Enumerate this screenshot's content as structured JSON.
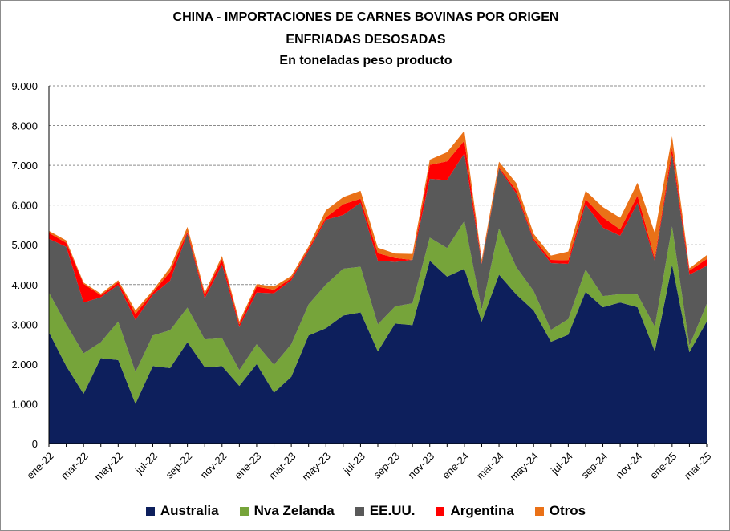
{
  "chart_data": {
    "type": "area",
    "stacked": true,
    "title": "CHINA - IMPORTACIONES DE CARNES BOVINAS POR ORIGEN",
    "subtitle": "ENFRIADAS DESOSADAS",
    "subtitle2": "En toneladas  peso producto",
    "ylim": [
      0,
      9000
    ],
    "yticks": [
      "0",
      "1.000",
      "2.000",
      "3.000",
      "4.000",
      "5.000",
      "6.000",
      "7.000",
      "8.000",
      "9.000"
    ],
    "grid": true,
    "legend_position": "bottom",
    "x": [
      "ene-22",
      "feb-22",
      "mar-22",
      "abr-22",
      "may-22",
      "jun-22",
      "jul-22",
      "ago-22",
      "sep-22",
      "oct-22",
      "nov-22",
      "dic-22",
      "ene-23",
      "feb-23",
      "mar-23",
      "abr-23",
      "may-23",
      "jun-23",
      "jul-23",
      "ago-23",
      "sep-23",
      "oct-23",
      "nov-23",
      "dic-23",
      "ene-24",
      "feb-24",
      "mar-24",
      "abr-24",
      "may-24",
      "jun-24",
      "jul-24",
      "ago-24",
      "sep-24",
      "oct-24",
      "nov-24",
      "dic-24",
      "ene-25",
      "feb-25",
      "mar-25"
    ],
    "xtick_labels": [
      "ene-22",
      "mar-22",
      "may-22",
      "jul-22",
      "sep-22",
      "nov-22",
      "ene-23",
      "mar-23",
      "may-23",
      "jul-23",
      "sep-23",
      "nov-23",
      "ene-24",
      "mar-24",
      "may-24",
      "jul-24",
      "sep-24",
      "nov-24",
      "ene-25",
      "mar-25"
    ],
    "series": [
      {
        "name": "Australia",
        "color": "#0d1f5c",
        "values": [
          2800,
          1950,
          1250,
          2150,
          2100,
          1000,
          1950,
          1900,
          2550,
          1920,
          1950,
          1450,
          2000,
          1280,
          1680,
          2720,
          2900,
          3220,
          3300,
          2320,
          3020,
          2980,
          4600,
          4200,
          4400,
          3070,
          4250,
          3750,
          3350,
          2560,
          2740,
          3820,
          3430,
          3550,
          3430,
          2320,
          4500,
          2300,
          3070
        ]
      },
      {
        "name": "Nva Zelanda",
        "color": "#76a43a",
        "values": [
          1000,
          1050,
          1020,
          400,
          970,
          800,
          770,
          950,
          870,
          700,
          700,
          400,
          500,
          700,
          820,
          780,
          1100,
          1180,
          1150,
          680,
          430,
          550,
          580,
          720,
          1200,
          300,
          1160,
          690,
          490,
          300,
          390,
          560,
          280,
          210,
          320,
          620,
          960,
          160,
          440
        ]
      },
      {
        "name": "EE.UU.",
        "color": "#595959",
        "values": [
          1350,
          1950,
          1280,
          1130,
          920,
          1310,
          1020,
          1250,
          1860,
          1030,
          1850,
          1080,
          1300,
          1800,
          1610,
          1350,
          1630,
          1350,
          1610,
          1600,
          1120,
          1090,
          1480,
          1710,
          1700,
          1150,
          1510,
          1850,
          1270,
          1680,
          1390,
          1640,
          1720,
          1470,
          2300,
          1650,
          1820,
          1790,
          960
        ]
      },
      {
        "name": "Argentina",
        "color": "#ff0000",
        "values": [
          150,
          100,
          470,
          50,
          70,
          150,
          60,
          220,
          50,
          90,
          140,
          70,
          150,
          90,
          50,
          50,
          60,
          270,
          100,
          190,
          100,
          0,
          350,
          470,
          320,
          30,
          30,
          80,
          50,
          80,
          90,
          130,
          260,
          160,
          190,
          70,
          150,
          100,
          170
        ]
      },
      {
        "name": "Otros",
        "color": "#ea7117",
        "values": [
          50,
          60,
          30,
          40,
          50,
          90,
          50,
          110,
          120,
          60,
          80,
          70,
          60,
          80,
          60,
          60,
          180,
          180,
          200,
          140,
          110,
          150,
          130,
          230,
          250,
          70,
          140,
          180,
          120,
          110,
          220,
          210,
          260,
          290,
          320,
          640,
          300,
          60,
          100
        ]
      }
    ]
  }
}
